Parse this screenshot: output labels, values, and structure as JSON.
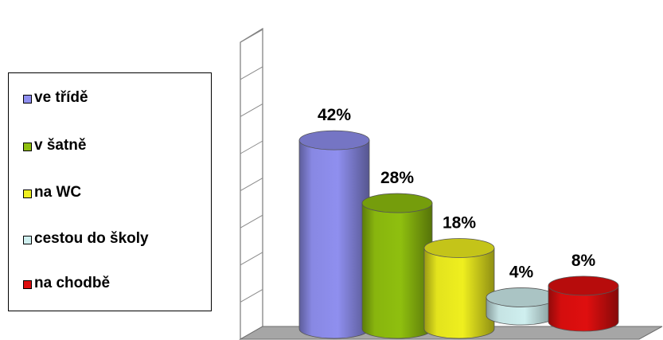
{
  "chart_data": {
    "type": "bar",
    "style": "3d-cylinder",
    "categories": [
      "ve třídě",
      "v šatně",
      "na WC",
      "cestou do školy",
      "na chodbě"
    ],
    "values": [
      42,
      28,
      18,
      4,
      8
    ],
    "data_labels": [
      "42%",
      "28%",
      "18%",
      "4%",
      "8%"
    ],
    "colors": [
      "#8f8fef",
      "#8fbf0f",
      "#efef1f",
      "#cfefef",
      "#df0f0f"
    ],
    "ylim": [
      0,
      50
    ],
    "legend_position": "left",
    "grid": false
  }
}
